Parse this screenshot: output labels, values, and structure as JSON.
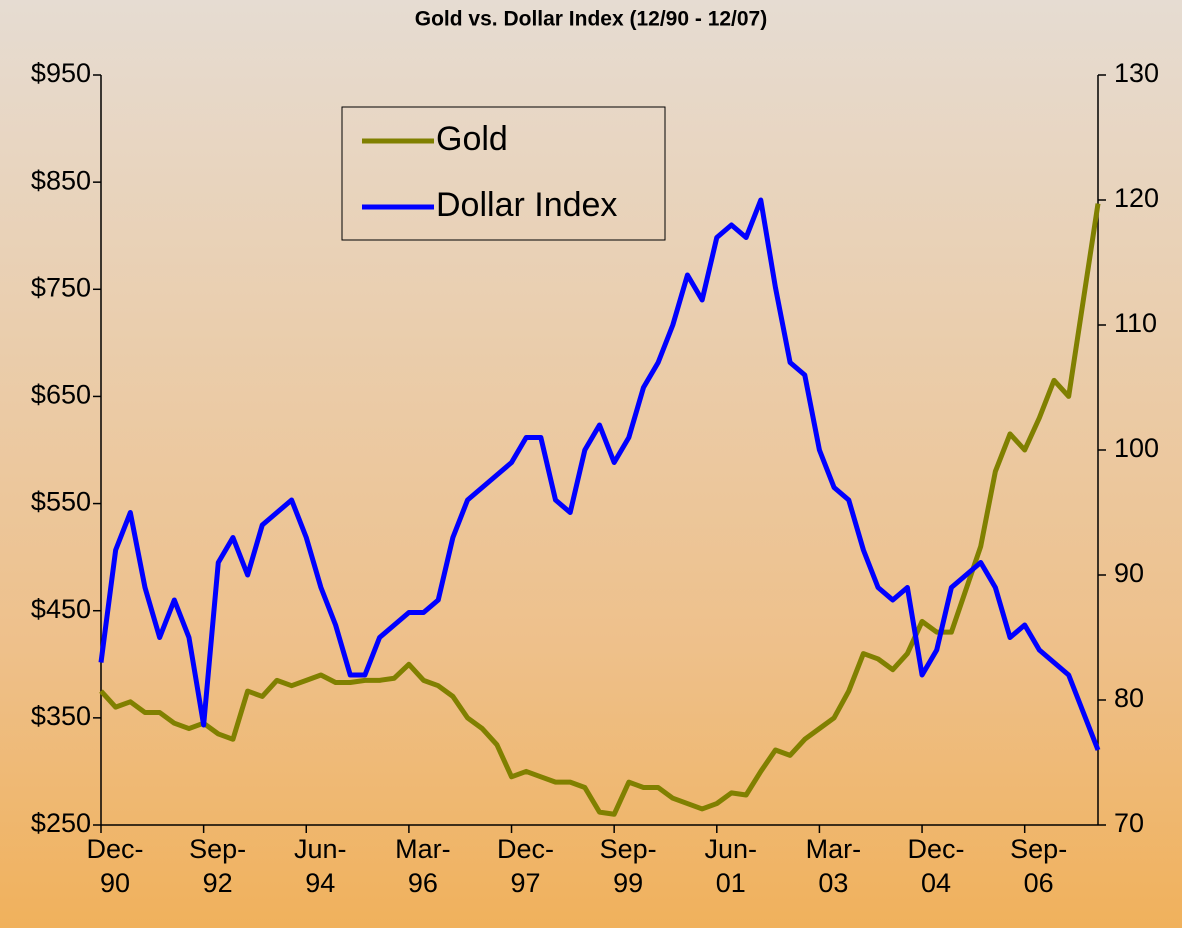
{
  "chart_data": {
    "type": "line",
    "title": "Gold vs. Dollar Index (12/90 - 12/07)",
    "categories": [
      "Dec-\n90",
      null,
      null,
      null,
      null,
      null,
      null,
      "Sep-\n92",
      null,
      null,
      null,
      null,
      null,
      null,
      "Jun-\n94",
      null,
      null,
      null,
      null,
      null,
      null,
      "Mar-\n96",
      null,
      null,
      null,
      null,
      null,
      null,
      "Dec-\n97",
      null,
      null,
      null,
      null,
      null,
      null,
      "Sep-\n99",
      null,
      null,
      null,
      null,
      null,
      null,
      "Jun-\n01",
      null,
      null,
      null,
      null,
      null,
      null,
      "Mar-\n03",
      null,
      null,
      null,
      null,
      null,
      null,
      "Dec-\n04",
      null,
      null,
      null,
      null,
      null,
      null,
      "Sep-\n06",
      null,
      null,
      null,
      null,
      null
    ],
    "series": [
      {
        "name": "Gold",
        "color": "#808000",
        "values": [
          375,
          360,
          365,
          355,
          355,
          345,
          340,
          345,
          335,
          330,
          375,
          370,
          385,
          380,
          385,
          390,
          383,
          383,
          385,
          385,
          387,
          400,
          385,
          380,
          370,
          350,
          340,
          325,
          295,
          300,
          295,
          290,
          290,
          285,
          262,
          260,
          290,
          285,
          285,
          275,
          270,
          265,
          270,
          280,
          278,
          300,
          320,
          315,
          330,
          340,
          350,
          375,
          410,
          405,
          395,
          410,
          440,
          430,
          430,
          470,
          510,
          580,
          615,
          600,
          630,
          665,
          650,
          740,
          830
        ]
      },
      {
        "name": "Dollar Index",
        "color": "#0000ff",
        "axis": "y2",
        "values": [
          83,
          92,
          95,
          89,
          85,
          88,
          85,
          78,
          91,
          93,
          90,
          94,
          95,
          96,
          93,
          89,
          86,
          82,
          82,
          85,
          86,
          87,
          87,
          88,
          93,
          96,
          97,
          98,
          99,
          101,
          101,
          96,
          95,
          100,
          102,
          99,
          101,
          105,
          107,
          110,
          114,
          112,
          117,
          118,
          117,
          120,
          113,
          107,
          106,
          100,
          97,
          96,
          92,
          89,
          88,
          89,
          82,
          84,
          89,
          90,
          91,
          89,
          85,
          86,
          84,
          83,
          82,
          79,
          76
        ]
      }
    ],
    "ylim": [
      250,
      950
    ],
    "yticks": [
      {
        "value": 250,
        "label": "$250"
      },
      {
        "value": 350,
        "label": "$350"
      },
      {
        "value": 450,
        "label": "$450"
      },
      {
        "value": 550,
        "label": "$550"
      },
      {
        "value": 650,
        "label": "$650"
      },
      {
        "value": 750,
        "label": "$750"
      },
      {
        "value": 850,
        "label": "$850"
      },
      {
        "value": 950,
        "label": "$950"
      }
    ],
    "y2lim": [
      70,
      130
    ],
    "y2ticks": [
      70,
      80,
      90,
      100,
      110,
      120,
      130
    ],
    "legend": "upper left"
  }
}
